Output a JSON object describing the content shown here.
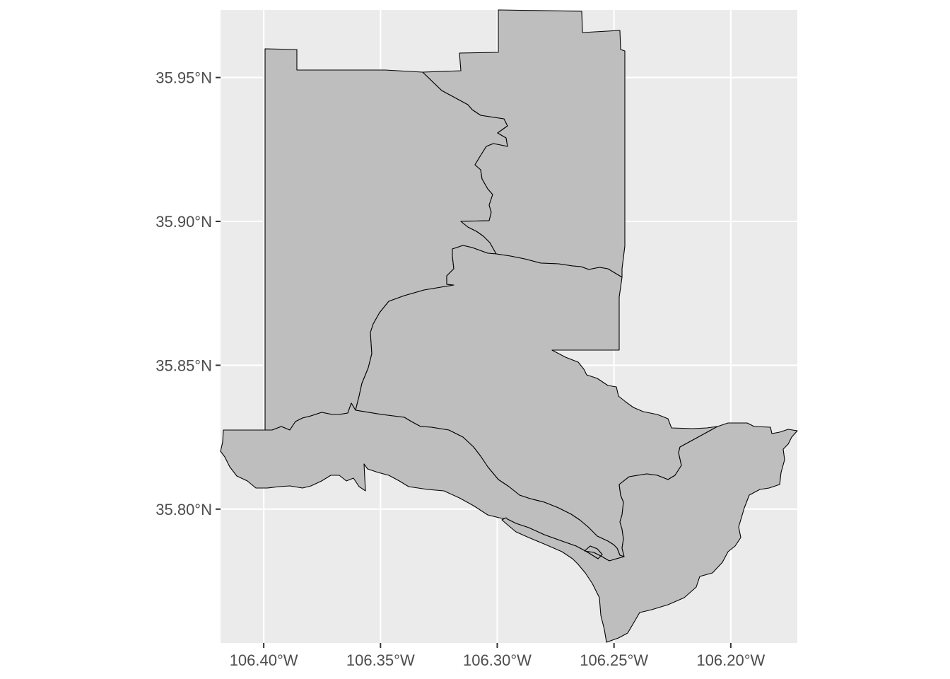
{
  "chart_data": {
    "type": "map",
    "crs": "longitude/latitude",
    "x_ticks": [
      {
        "value": -106.4,
        "label": "106.40°W"
      },
      {
        "value": -106.35,
        "label": "106.35°W"
      },
      {
        "value": -106.3,
        "label": "106.30°W"
      },
      {
        "value": -106.25,
        "label": "106.25°W"
      },
      {
        "value": -106.2,
        "label": "106.20°W"
      }
    ],
    "y_ticks": [
      {
        "value": 35.8,
        "label": "35.80°N"
      },
      {
        "value": 35.85,
        "label": "35.85°N"
      },
      {
        "value": 35.9,
        "label": "35.90°N"
      },
      {
        "value": 35.95,
        "label": "35.95°N"
      }
    ],
    "xlim": [
      -106.4185,
      -106.1715
    ],
    "ylim": [
      35.7535,
      35.9735
    ],
    "grid": true,
    "panel_background": "#ebebeb",
    "fill_color": "#bebebe",
    "border_color": "#000000",
    "region_count": 5
  }
}
